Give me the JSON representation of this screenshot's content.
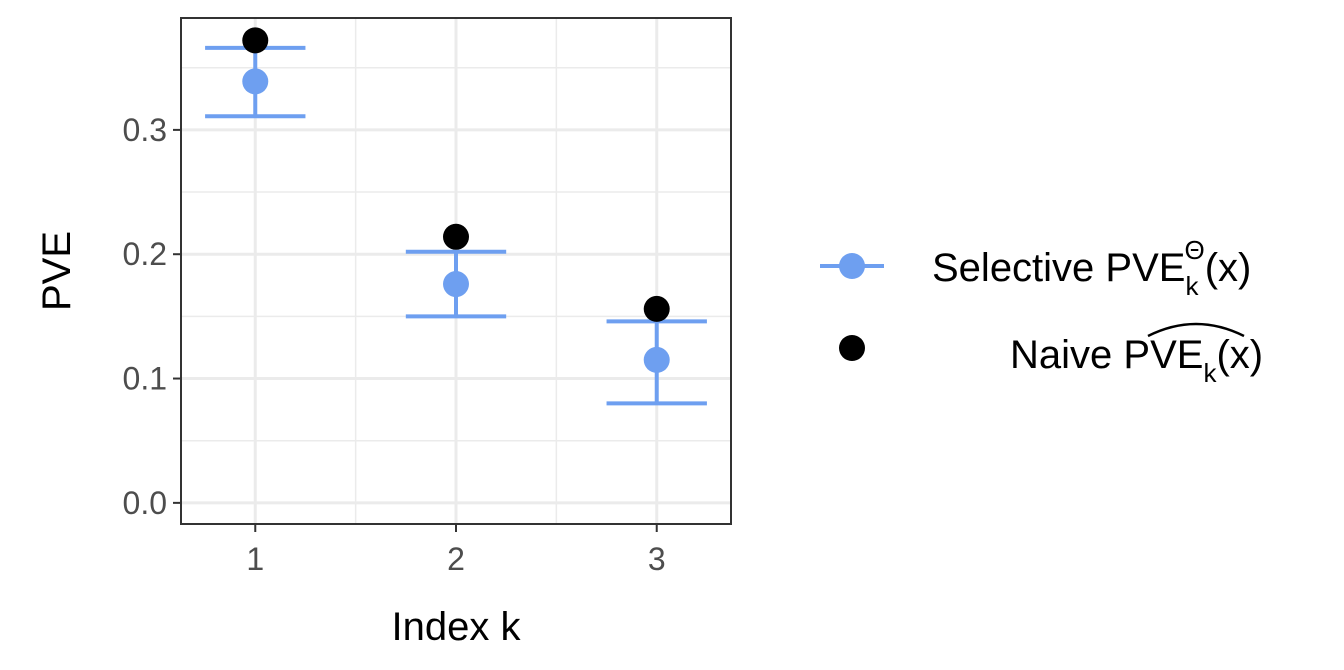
{
  "chart_data": {
    "type": "scatter",
    "categories": [
      "1",
      "2",
      "3"
    ],
    "x": [
      1,
      2,
      3
    ],
    "xlabel": "Index k",
    "ylabel": "PVE",
    "xlim": [
      0.63,
      3.37
    ],
    "ylim": [
      -0.017,
      0.39
    ],
    "yticks": [
      0.0,
      0.1,
      0.2,
      0.3
    ],
    "ytick_labels": [
      "0.0",
      "0.1",
      "0.2",
      "0.3"
    ],
    "xticks": [
      1,
      2,
      3
    ],
    "xtick_labels": [
      "1",
      "2",
      "3"
    ],
    "grid": true,
    "legend_position": "right",
    "series": [
      {
        "name": "Selective PVE_k^Θ(x)",
        "color": "#6e9ff0",
        "values": [
          0.339,
          0.176,
          0.115
        ],
        "lower": [
          0.311,
          0.15,
          0.08
        ],
        "upper": [
          0.366,
          0.202,
          0.146
        ],
        "style": "point-with-errorbar"
      },
      {
        "name": "Naive PVE_k(x) (hat)",
        "color": "#000000",
        "values": [
          0.372,
          0.214,
          0.156
        ],
        "style": "point"
      }
    ],
    "legend": {
      "selective": {
        "prefix": "Selective PVE",
        "sub": "k",
        "sup": "Θ",
        "suffix": "(x)"
      },
      "naive": {
        "prefix": "Naive ",
        "main": "PVE",
        "sub": "k",
        "suffix": "(x)"
      }
    }
  }
}
